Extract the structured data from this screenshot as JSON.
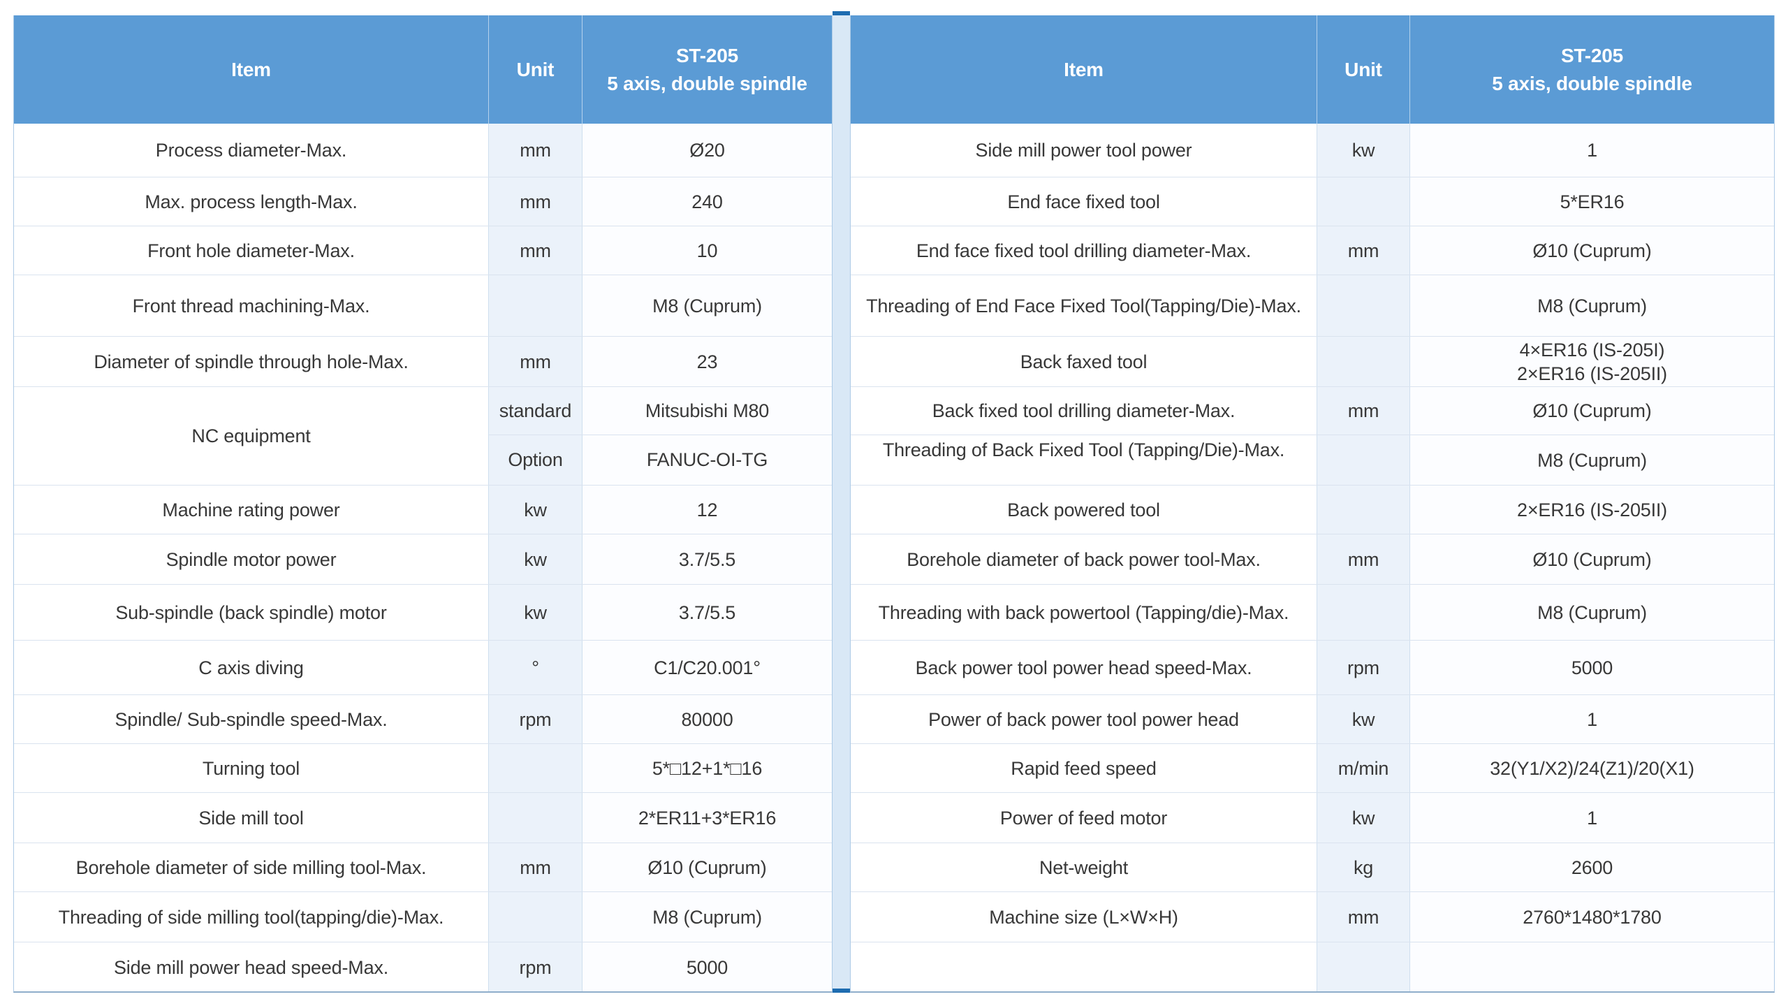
{
  "header": {
    "item": "Item",
    "unit": "Unit",
    "model_line1": "ST-205",
    "model_line2": "5 axis, double spindle"
  },
  "colors": {
    "header_blue": "#5B9BD5",
    "divider_dark_blue": "#1E6CB0",
    "divider_light_blue": "#D9E8F6",
    "unit_column_tint": "#EBF2FA"
  },
  "left_table": {
    "rows": [
      {
        "item": "Process diameter-Max.",
        "unit": "mm",
        "value": "Ø20"
      },
      {
        "item": "Max. process length-Max.",
        "unit": "mm",
        "value": "240"
      },
      {
        "item": "Front hole diameter-Max.",
        "unit": "mm",
        "value": "10"
      },
      {
        "item": "Front thread machining-Max.",
        "unit": "",
        "value": "M8 (Cuprum)"
      },
      {
        "item": "Diameter of spindle through hole-Max.",
        "unit": "mm",
        "value": "23"
      },
      {
        "item": "NC equipment",
        "sub_rows": [
          {
            "unit": "standard",
            "value": "Mitsubishi M80"
          },
          {
            "unit": "Option",
            "value": "FANUC-OI-TG"
          }
        ]
      },
      {
        "item": "Machine rating power",
        "unit": "kw",
        "value": "12"
      },
      {
        "item": "Spindle motor power",
        "unit": "kw",
        "value": "3.7/5.5"
      },
      {
        "item": "Sub-spindle (back spindle) motor",
        "unit": "kw",
        "value": "3.7/5.5"
      },
      {
        "item": "C axis diving",
        "unit": "°",
        "value": "C1/C20.001°"
      },
      {
        "item": "Spindle/ Sub-spindle speed-Max.",
        "unit": "rpm",
        "value": "80000"
      },
      {
        "item": "Turning tool",
        "unit": "",
        "value": "5*□12+1*□16"
      },
      {
        "item": "Side mill tool",
        "unit": "",
        "value": "2*ER11+3*ER16"
      },
      {
        "item": "Borehole diameter of side milling tool-Max.",
        "unit": "mm",
        "value": "Ø10 (Cuprum)"
      },
      {
        "item": "Threading of side milling tool(tapping/die)-Max.",
        "unit": "",
        "value": "M8 (Cuprum)"
      },
      {
        "item": "Side mill power head speed-Max.",
        "unit": "rpm",
        "value": "5000"
      }
    ]
  },
  "right_table": {
    "rows": [
      {
        "item": "Side mill power tool power",
        "unit": "kw",
        "value": "1"
      },
      {
        "item": "End face fixed tool",
        "unit": "",
        "value": "5*ER16"
      },
      {
        "item": "End face fixed tool drilling diameter-Max.",
        "unit": "mm",
        "value": "Ø10 (Cuprum)"
      },
      {
        "item": "Threading of End Face Fixed Tool(Tapping/Die)-Max.",
        "unit": "",
        "value": "M8 (Cuprum)"
      },
      {
        "item": "Back faxed tool",
        "unit": "",
        "value": "4×ER16 (IS-205I)\n2×ER16 (IS-205II)"
      },
      {
        "item": "Back fixed tool drilling diameter-Max.",
        "unit": "mm",
        "value": "Ø10 (Cuprum)"
      },
      {
        "item": "Threading of Back Fixed Tool (Tapping/Die)-Max.",
        "unit": "",
        "value": "M8 (Cuprum)"
      },
      {
        "item": "Back powered tool",
        "unit": "",
        "value": "2×ER16 (IS-205II)"
      },
      {
        "item": "Borehole diameter of back power tool-Max.",
        "unit": "mm",
        "value": "Ø10 (Cuprum)"
      },
      {
        "item": "Threading with back powertool (Tapping/die)-Max.",
        "unit": "",
        "value": "M8 (Cuprum)"
      },
      {
        "item": "Back power tool power head speed-Max.",
        "unit": "rpm",
        "value": "5000"
      },
      {
        "item": "Power of back power tool power head",
        "unit": "kw",
        "value": "1"
      },
      {
        "item": "Rapid feed speed",
        "unit": "m/min",
        "value": "32(Y1/X2)/24(Z1)/20(X1)"
      },
      {
        "item": "Power of feed motor",
        "unit": "kw",
        "value": "1"
      },
      {
        "item": "Net-weight",
        "unit": "kg",
        "value": "2600"
      },
      {
        "item": "Machine size (L×W×H)",
        "unit": "mm",
        "value": "2760*1480*1780"
      },
      {
        "item": "",
        "unit": "",
        "value": ""
      }
    ]
  }
}
